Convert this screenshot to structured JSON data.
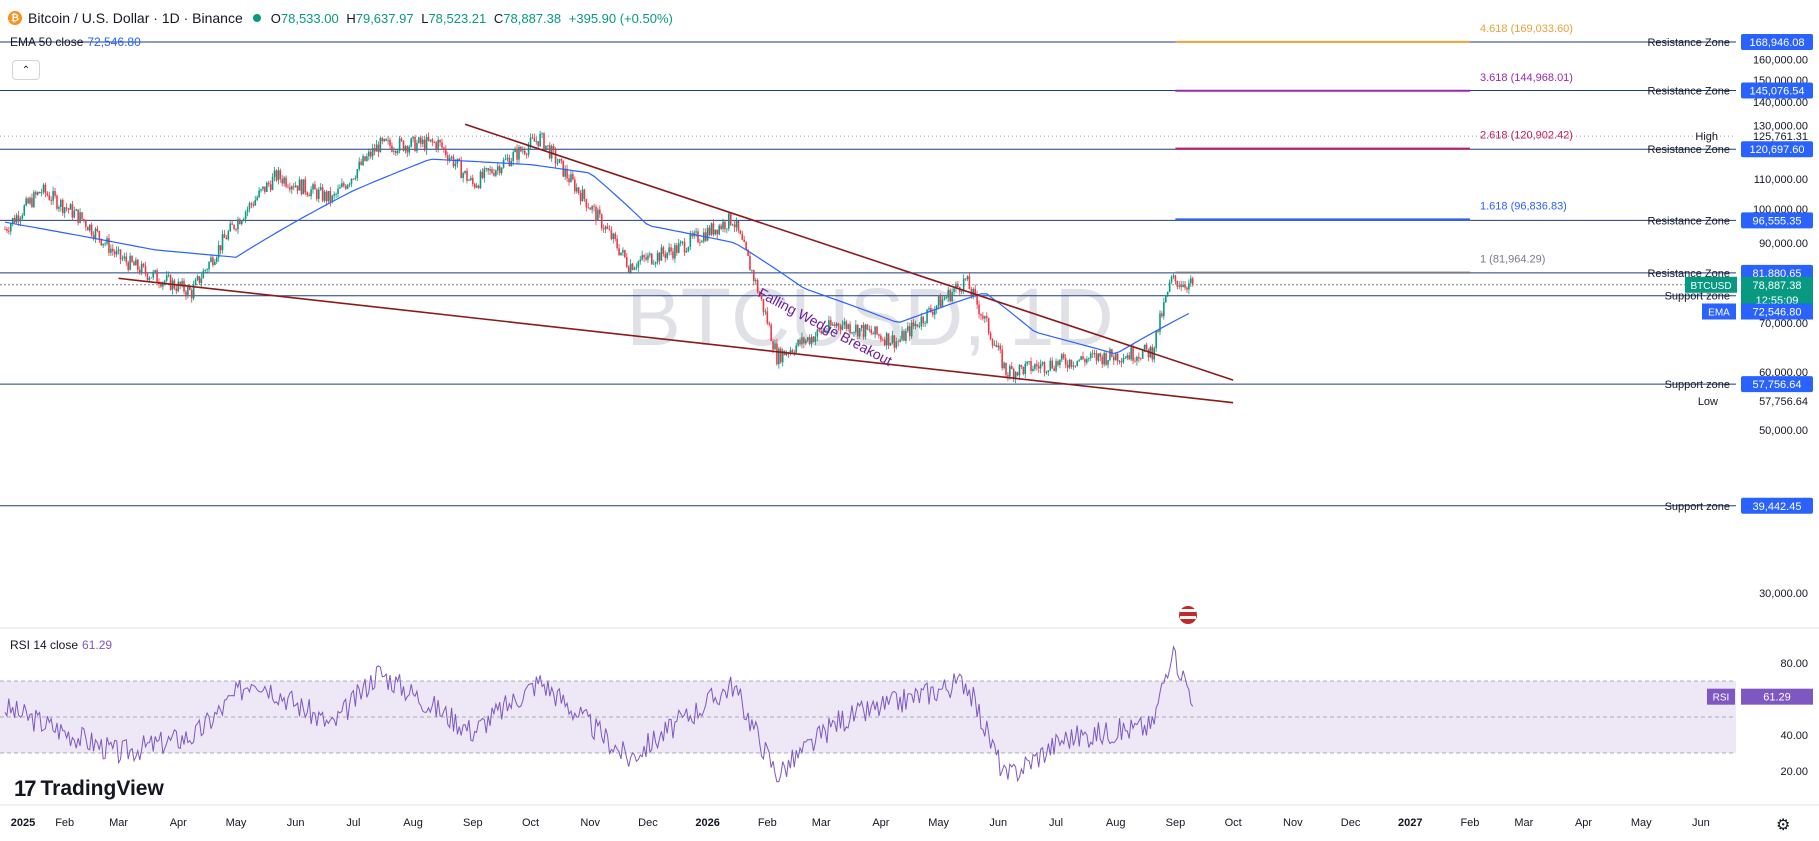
{
  "header": {
    "symbol": "Bitcoin / U.S. Dollar · 1D · Binance",
    "coin_glyph": "₿",
    "open_label": "O",
    "open": "78,533.00",
    "high_label": "H",
    "high": "79,637.97",
    "low_label": "L",
    "low": "78,523.21",
    "close_label": "C",
    "close": "78,887.38",
    "change": "+395.90 (+0.50%)",
    "ema_label": "EMA 50 close",
    "ema_value": "72,546.80",
    "collapse_glyph": "⌃"
  },
  "watermark": "BTCUSD, 1D",
  "rsi": {
    "label": "RSI 14 close",
    "value": "61.29"
  },
  "logo": {
    "mark": "17",
    "text": "TradingView"
  },
  "settings_icon": "⚙",
  "colors": {
    "up": "#089981",
    "down": "#f23645",
    "ema": "#2962ff",
    "wedge": "#8b1a1a",
    "level": "#1e3a8a",
    "rsi": "#7e57c2",
    "rsi_band": "#ede7f6",
    "price_tag": "#2962ff",
    "current_tag": "#089981"
  },
  "chart_data": {
    "type": "candlestick",
    "title": "BTCUSD, 1D",
    "series_summary": [
      {
        "date": "2025-01-01",
        "close": 94000
      },
      {
        "date": "2025-01-20",
        "close": 106000
      },
      {
        "date": "2025-02-10",
        "close": 97000
      },
      {
        "date": "2025-03-01",
        "close": 86000
      },
      {
        "date": "2025-03-15",
        "close": 82000
      },
      {
        "date": "2025-04-08",
        "close": 77000
      },
      {
        "date": "2025-05-01",
        "close": 96000
      },
      {
        "date": "2025-05-22",
        "close": 111000
      },
      {
        "date": "2025-06-20",
        "close": 103000
      },
      {
        "date": "2025-07-14",
        "close": 122000
      },
      {
        "date": "2025-08-14",
        "close": 123000
      },
      {
        "date": "2025-09-01",
        "close": 108000
      },
      {
        "date": "2025-10-06",
        "close": 125000
      },
      {
        "date": "2025-10-20",
        "close": 111000
      },
      {
        "date": "2025-11-21",
        "close": 84000
      },
      {
        "date": "2025-12-15",
        "close": 88000
      },
      {
        "date": "2026-01-14",
        "close": 97000
      },
      {
        "date": "2026-02-06",
        "close": 63000
      },
      {
        "date": "2026-03-10",
        "close": 70000
      },
      {
        "date": "2026-04-10",
        "close": 66000
      },
      {
        "date": "2026-05-15",
        "close": 80000
      },
      {
        "date": "2026-06-05",
        "close": 60000
      },
      {
        "date": "2026-07-05",
        "close": 62000
      },
      {
        "date": "2026-08-20",
        "close": 64000
      },
      {
        "date": "2026-08-30",
        "close": 80000
      },
      {
        "date": "2026-09-10",
        "close": 78887.38
      }
    ],
    "ema50_summary": [
      {
        "date": "2025-01-01",
        "value": 96000
      },
      {
        "date": "2025-03-20",
        "value": 88000
      },
      {
        "date": "2025-05-01",
        "value": 86000
      },
      {
        "date": "2025-07-01",
        "value": 106000
      },
      {
        "date": "2025-08-10",
        "value": 117000
      },
      {
        "date": "2025-10-01",
        "value": 115000
      },
      {
        "date": "2025-11-01",
        "value": 112000
      },
      {
        "date": "2025-12-01",
        "value": 95000
      },
      {
        "date": "2026-01-15",
        "value": 90000
      },
      {
        "date": "2026-02-20",
        "value": 78000
      },
      {
        "date": "2026-04-10",
        "value": 70000
      },
      {
        "date": "2026-05-25",
        "value": 77000
      },
      {
        "date": "2026-06-20",
        "value": 68000
      },
      {
        "date": "2026-08-01",
        "value": 63500
      },
      {
        "date": "2026-09-10",
        "value": 72546.8
      }
    ],
    "wedge_lines": [
      {
        "from": {
          "date": "2025-03-01",
          "value": 80500
        },
        "to": {
          "date": "2026-10-01",
          "value": 54500
        }
      },
      {
        "from": {
          "date": "2025-08-28",
          "value": 130500
        },
        "to": {
          "date": "2026-10-01",
          "value": 58500
        }
      }
    ],
    "wedge_annotation": "Falling Wedge Breakout",
    "levels": [
      {
        "label": "Resistance Zone",
        "value": 168946.08,
        "tag": "168,946.08"
      },
      {
        "label": "Resistance Zone",
        "value": 145076.54,
        "tag": "145,076.54"
      },
      {
        "label": "Resistance Zone",
        "value": 120697.6,
        "tag": "120,697.60"
      },
      {
        "label": "Resistance Zone",
        "value": 96555.35,
        "tag": "96,555.35"
      },
      {
        "label": "Resistance Zone",
        "value": 81880.65,
        "tag": "81,880.65"
      },
      {
        "label": "Support zone",
        "value": 76229.64,
        "tag": "76,229.64"
      },
      {
        "label": "Support zone",
        "value": 57756.64,
        "tag": "57,756.64"
      },
      {
        "label": "Support zone",
        "value": 39442.45,
        "tag": "39,442.45"
      }
    ],
    "fib_levels": [
      {
        "label": "4.618 (169,033.60)",
        "value": 169033.6,
        "color": "#e8a23a"
      },
      {
        "label": "3.618 (144,968.01)",
        "value": 144968.01,
        "color": "#9c27b0"
      },
      {
        "label": "2.618 (120,902.42)",
        "value": 120902.42,
        "color": "#c2185b"
      },
      {
        "label": "1.618 (96,836.83)",
        "value": 96836.83,
        "color": "#2962ff"
      },
      {
        "label": "1 (81,964.29)",
        "value": 81964.29,
        "color": "#787b86"
      }
    ],
    "high_marker": {
      "label": "High",
      "tag": "125,761.31",
      "value": 125761.31
    },
    "low_marker": {
      "label": "Low",
      "tag": "57,756.64",
      "value": 57756.64
    },
    "current_price": {
      "symbol": "BTCUSD",
      "tag": "78,887.38",
      "countdown": "12:55:09",
      "value": 78887.38
    },
    "ema_tag": {
      "label": "EMA",
      "tag": "72,546.80",
      "value": 72546.8
    },
    "y_ticks": [
      "30,000.00",
      "40,000.00",
      "50,000.00",
      "60,000.00",
      "70,000.00",
      "80,000.00",
      "90,000.00",
      "100,000.00",
      "110,000.00",
      "120,000.00",
      "130,000.00",
      "140,000.00",
      "150,000.00",
      "160,000.00"
    ],
    "ylim": [
      30000,
      170000
    ],
    "y_scale": "log",
    "x_ticks": [
      "2025",
      "Feb",
      "Mar",
      "Apr",
      "May",
      "Jun",
      "Jul",
      "Aug",
      "Sep",
      "Oct",
      "Nov",
      "Dec",
      "2026",
      "Feb",
      "Mar",
      "Apr",
      "May",
      "Jun",
      "Jul",
      "Aug",
      "Sep",
      "Oct",
      "Nov",
      "Dec",
      "2027",
      "Feb",
      "Mar",
      "Apr",
      "May",
      "Jun"
    ],
    "xlim": [
      "2025-01-01",
      "2027-06-30"
    ],
    "rsi": {
      "period": 14,
      "upper": 70,
      "lower": 30,
      "mid": 50,
      "ticks": [
        "20.00",
        "40.00",
        "80.00"
      ],
      "ylim": [
        15,
        90
      ],
      "current": 61.29,
      "tag": "61.29",
      "tag_label": "RSI",
      "summary": [
        {
          "date": "2025-01-01",
          "value": 55
        },
        {
          "date": "2025-03-01",
          "value": 30
        },
        {
          "date": "2025-04-10",
          "value": 40
        },
        {
          "date": "2025-05-10",
          "value": 72
        },
        {
          "date": "2025-06-20",
          "value": 45
        },
        {
          "date": "2025-07-14",
          "value": 75
        },
        {
          "date": "2025-09-01",
          "value": 42
        },
        {
          "date": "2025-10-06",
          "value": 70
        },
        {
          "date": "2025-11-21",
          "value": 27
        },
        {
          "date": "2026-01-14",
          "value": 68
        },
        {
          "date": "2026-02-06",
          "value": 18
        },
        {
          "date": "2026-03-10",
          "value": 48
        },
        {
          "date": "2026-05-15",
          "value": 70
        },
        {
          "date": "2026-06-05",
          "value": 16
        },
        {
          "date": "2026-07-05",
          "value": 38
        },
        {
          "date": "2026-08-20",
          "value": 45
        },
        {
          "date": "2026-08-30",
          "value": 87
        },
        {
          "date": "2026-09-10",
          "value": 61.29
        }
      ]
    }
  }
}
